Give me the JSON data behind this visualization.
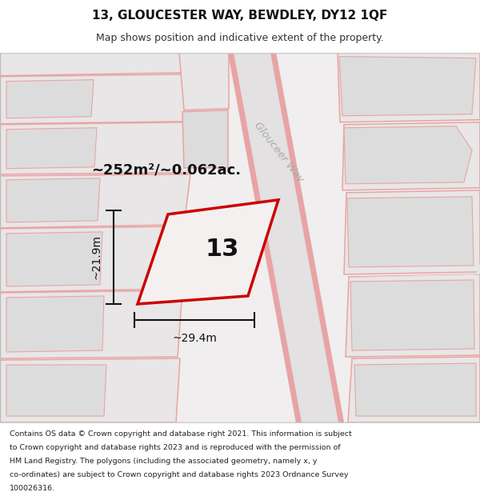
{
  "title_line1": "13, GLOUCESTER WAY, BEWDLEY, DY12 1QF",
  "title_line2": "Map shows position and indicative extent of the property.",
  "footer_lines": [
    "Contains OS data © Crown copyright and database right 2021. This information is subject",
    "to Crown copyright and database rights 2023 and is reproduced with the permission of",
    "HM Land Registry. The polygons (including the associated geometry, namely x, y",
    "co-ordinates) are subject to Crown copyright and database rights 2023 Ordnance Survey",
    "100026316."
  ],
  "area_label": "~252m²/~0.062ac.",
  "property_number": "13",
  "dim_width": "~29.4m",
  "dim_height": "~21.9m",
  "street_label": "Glouceer Way",
  "map_bg": "#f0eeee",
  "block_fc": "#e8e6e6",
  "block_fc2": "#dddcdc",
  "road_fc": "#e3e1e1",
  "red_plot": "#cc0000",
  "red_plot_fill": "#f5f0f0",
  "pink_lines": "#e8a4a4",
  "title_bg": "#ffffff",
  "footer_bg": "#ffffff"
}
